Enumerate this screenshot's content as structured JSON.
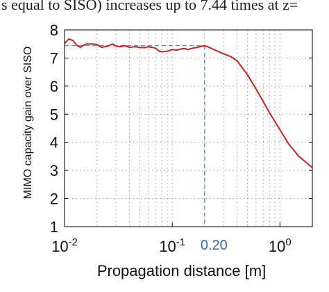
{
  "caption_fragment": "s equal to SISO) increases up to 7.44 times at z=",
  "chart_data": {
    "type": "line",
    "xlabel": "Propagation distance [m]",
    "ylabel": "MIMO capacity gain over SISO",
    "xscale": "log",
    "xlim": [
      0.01,
      2
    ],
    "ylim": [
      1,
      8
    ],
    "grid": true,
    "y_ticks": [
      "1",
      "2",
      "3",
      "4",
      "5",
      "6",
      "7",
      "8"
    ],
    "x_ticks": [
      {
        "base": "10",
        "exp": "-2"
      },
      {
        "base": "10",
        "exp": "-1"
      },
      {
        "base": "10",
        "exp": "0"
      }
    ],
    "annotation": {
      "x": 0.2,
      "y": 7.44,
      "label": "0.20"
    },
    "series": [
      {
        "color": "#cc1f1f",
        "x": [
          0.01,
          0.011,
          0.012,
          0.013,
          0.014,
          0.015,
          0.016,
          0.018,
          0.02,
          0.022,
          0.025,
          0.028,
          0.03,
          0.033,
          0.036,
          0.04,
          0.045,
          0.05,
          0.055,
          0.06,
          0.065,
          0.07,
          0.075,
          0.08,
          0.09,
          0.1,
          0.11,
          0.12,
          0.13,
          0.14,
          0.15,
          0.17,
          0.2,
          0.22,
          0.25,
          0.3,
          0.35,
          0.4,
          0.5,
          0.6,
          0.7,
          0.8,
          1.0,
          1.2,
          1.5,
          2.0
        ],
        "y": [
          7.52,
          7.68,
          7.62,
          7.45,
          7.38,
          7.45,
          7.5,
          7.5,
          7.48,
          7.38,
          7.42,
          7.5,
          7.42,
          7.4,
          7.44,
          7.38,
          7.4,
          7.38,
          7.37,
          7.4,
          7.38,
          7.35,
          7.25,
          7.22,
          7.24,
          7.3,
          7.28,
          7.32,
          7.34,
          7.3,
          7.34,
          7.38,
          7.44,
          7.38,
          7.28,
          7.15,
          7.05,
          6.9,
          6.4,
          5.9,
          5.45,
          5.05,
          4.45,
          3.95,
          3.5,
          3.1
        ]
      }
    ]
  },
  "colors": {
    "curve": "#cc1f1f",
    "marker": "#5b8fc0",
    "axes": "#000000",
    "grid": "#9a9a9a"
  }
}
